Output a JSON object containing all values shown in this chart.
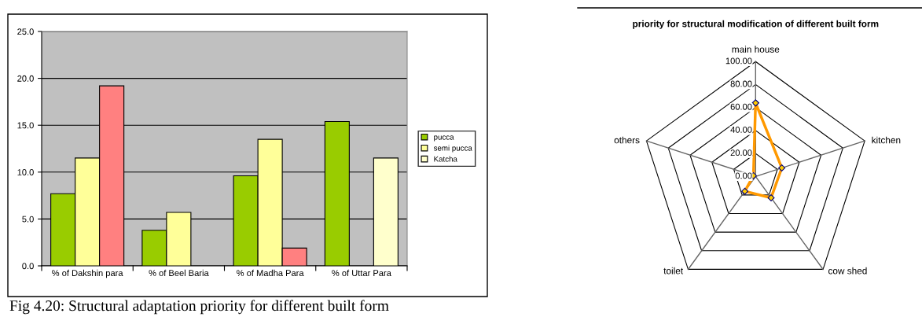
{
  "chart_data": [
    {
      "type": "bar",
      "categories": [
        "% of Dakshin para",
        "% of Beel Baria",
        "% of Madha Para",
        "% of Uttar Para"
      ],
      "series": [
        {
          "name": "pucca",
          "color": "#99cc00",
          "values": [
            7.7,
            3.8,
            9.6,
            15.4
          ]
        },
        {
          "name": "semi pucca",
          "color": "#ffff99",
          "values": [
            11.5,
            5.7,
            13.5,
            null
          ]
        },
        {
          "name": "Katcha",
          "color": "#ffffcc",
          "colors": [
            "#ff8080",
            "#ff8080",
            "#ff8080",
            "#ffffcc"
          ],
          "values": [
            19.2,
            null,
            1.9,
            11.5
          ]
        }
      ],
      "ylim": [
        0,
        25
      ],
      "yticks": [
        {
          "value": 0,
          "label": "0.0"
        },
        {
          "value": 5,
          "label": "5.0"
        },
        {
          "value": 10,
          "label": "10.0"
        },
        {
          "value": 15,
          "label": "15.0"
        },
        {
          "value": 20,
          "label": "20.0"
        },
        {
          "value": 25,
          "label": "25.0"
        }
      ],
      "grid": "y",
      "legend": "right",
      "annotations": [
        "Fig 4.20: Structural adaptation priority for different built form"
      ]
    },
    {
      "type": "radar",
      "title": "priority for structural modification of different built form",
      "categories": [
        "main house",
        "kitchen",
        "cow shed",
        "toilet",
        "others"
      ],
      "series": [
        {
          "color": "#ff9900",
          "values": [
            64,
            24,
            23,
            16,
            2
          ]
        }
      ],
      "ylim": [
        0,
        100
      ],
      "yticks": [
        {
          "value": 0,
          "label": "0.00"
        },
        {
          "value": 20,
          "label": "20.00"
        },
        {
          "value": 40,
          "label": "40.00"
        },
        {
          "value": 60,
          "label": "60.00"
        },
        {
          "value": 80,
          "label": "80.00"
        },
        {
          "value": 100,
          "label": "100.00"
        }
      ],
      "marker": "diamond"
    }
  ]
}
